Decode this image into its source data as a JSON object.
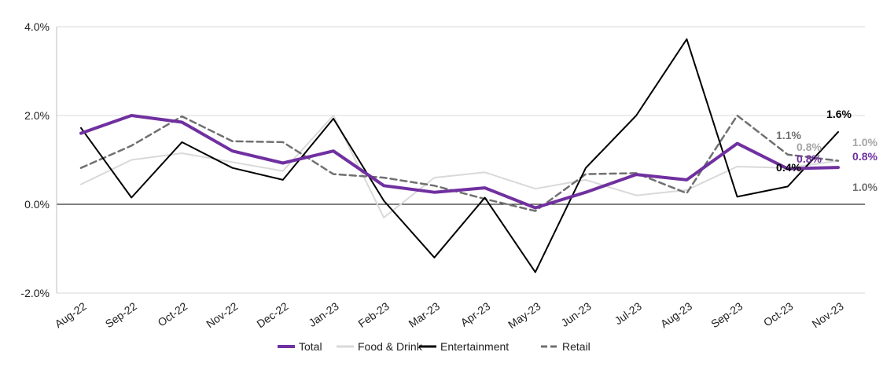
{
  "chart_data": {
    "type": "line",
    "title": "",
    "xlabel": "",
    "ylabel": "",
    "ylim": [
      -0.02,
      0.04
    ],
    "yticks": [
      -0.02,
      0.0,
      0.02,
      0.04
    ],
    "ytick_labels": [
      "-2.0%",
      "0.0%",
      "2.0%",
      "4.0%"
    ],
    "grid": "horizontal",
    "legend_position": "bottom",
    "categories": [
      "Aug-22",
      "Sep-22",
      "Oct-22",
      "Nov-22",
      "Dec-22",
      "Jan-23",
      "Feb-23",
      "Mar-23",
      "Apr-23",
      "May-23",
      "Jun-23",
      "Jul-23",
      "Aug-23",
      "Sep-23",
      "Oct-23",
      "Nov-23"
    ],
    "series": [
      {
        "name": "Total",
        "color": "#7030a0",
        "style": "solid",
        "width": 4,
        "values": [
          0.016,
          0.02,
          0.0185,
          0.012,
          0.0093,
          0.012,
          0.0042,
          0.0027,
          0.0037,
          -0.0008,
          0.0027,
          0.0067,
          0.0055,
          0.0137,
          0.008,
          0.0083
        ]
      },
      {
        "name": "Food & Drink",
        "color": "#d9d9d9",
        "style": "solid",
        "width": 2,
        "values": [
          0.0045,
          0.01,
          0.0115,
          0.0095,
          0.0075,
          0.02,
          -0.003,
          0.006,
          0.0072,
          0.0035,
          0.0055,
          0.002,
          0.0032,
          0.0085,
          0.0082,
          0.0098
        ]
      },
      {
        "name": "Entertainment",
        "color": "#000000",
        "style": "solid",
        "width": 2,
        "values": [
          0.0172,
          0.0015,
          0.014,
          0.0082,
          0.0055,
          0.0193,
          0.0008,
          -0.012,
          0.0015,
          -0.0153,
          0.0082,
          0.02,
          0.0372,
          0.0017,
          0.004,
          0.0163
        ]
      },
      {
        "name": "Retail",
        "color": "#707070",
        "style": "dashed",
        "width": 2.5,
        "values": [
          0.0082,
          0.0132,
          0.0198,
          0.0142,
          0.014,
          0.0068,
          0.006,
          0.0042,
          0.0012,
          -0.0015,
          0.0068,
          0.007,
          0.0025,
          0.02,
          0.0112,
          0.0098
        ]
      }
    ],
    "annotations": [
      {
        "text": "1.6%",
        "color": "#000000"
      },
      {
        "text": "1.1%",
        "color": "#707070"
      },
      {
        "text": "0.8%",
        "color": "#a6a6a6"
      },
      {
        "text": "0.8%",
        "color": "#7030a0"
      },
      {
        "text": "0.4%",
        "color": "#000000"
      },
      {
        "text": "1.0%",
        "color": "#a6a6a6"
      },
      {
        "text": "0.8%",
        "color": "#7030a0"
      },
      {
        "text": "1.0%",
        "color": "#707070"
      }
    ]
  }
}
